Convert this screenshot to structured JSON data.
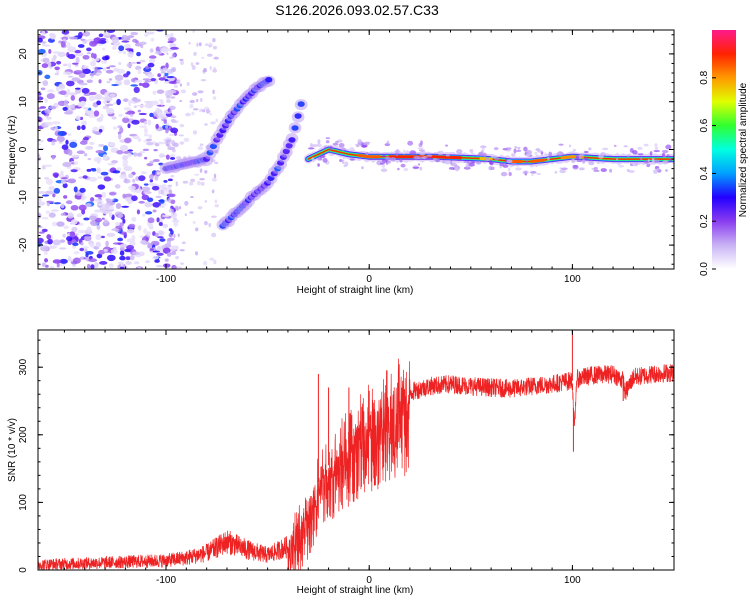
{
  "title": "S126.2026.093.02.57.C33",
  "chart_data": [
    {
      "type": "heatmap",
      "title": "S126.2026.093.02.57.C33",
      "xlabel": "Height of straight line (km)",
      "ylabel": "Frequency (Hz)",
      "xlim": [
        -163,
        150
      ],
      "ylim": [
        -25,
        25
      ],
      "xticks": [
        -100,
        0,
        100
      ],
      "xtick_labels": [
        "-100",
        "0",
        "100"
      ],
      "yticks": [
        -20,
        -10,
        0,
        10,
        20
      ],
      "ytick_labels": [
        "-20",
        "-10",
        "0",
        "10",
        "20"
      ],
      "colorbar": {
        "label": "Normalized spectral amplitude",
        "range": [
          0,
          1
        ],
        "ticks": [
          0.0,
          0.2,
          0.4,
          0.6,
          0.8
        ],
        "tick_labels": [
          "0.0",
          "0.2",
          "0.4",
          "0.6",
          "0.8"
        ],
        "colors": [
          "#ffffff",
          "#c9b3f5",
          "#8a3cf0",
          "#2200ff",
          "#00a0ff",
          "#00ffe0",
          "#30ff30",
          "#e0ff00",
          "#ff9900",
          "#ff2200",
          "#ff1a8c"
        ]
      },
      "features": [
        {
          "name": "noise_region",
          "x_range": [
            -163,
            -95
          ],
          "y_range": [
            -25,
            25
          ],
          "amplitude": 0.15
        },
        {
          "name": "upper_branch",
          "points": [
            [
              -100,
              -4
            ],
            [
              -90,
              -3
            ],
            [
              -80,
              -2
            ],
            [
              -75,
              2
            ],
            [
              -72,
              4
            ],
            [
              -68,
              7
            ],
            [
              -62,
              10
            ],
            [
              -55,
              13
            ],
            [
              -48,
              15
            ]
          ],
          "amplitude": 0.35
        },
        {
          "name": "lower_branch",
          "points": [
            [
              -72,
              -16
            ],
            [
              -65,
              -13
            ],
            [
              -58,
              -10
            ],
            [
              -50,
              -7
            ],
            [
              -45,
              -4
            ],
            [
              -38,
              2
            ],
            [
              -35,
              7
            ],
            [
              -32,
              12
            ]
          ],
          "amplitude": 0.35
        },
        {
          "name": "main_trace",
          "points": [
            [
              -30,
              -2
            ],
            [
              -20,
              0
            ],
            [
              -10,
              -1
            ],
            [
              0,
              -1.5
            ],
            [
              10,
              -1.5
            ],
            [
              30,
              -1.5
            ],
            [
              50,
              -1.8
            ],
            [
              60,
              -2
            ],
            [
              70,
              -2.5
            ],
            [
              80,
              -2.5
            ],
            [
              90,
              -2
            ],
            [
              100,
              -1.5
            ],
            [
              120,
              -2
            ],
            [
              150,
              -2
            ]
          ],
          "amplitude": 0.9
        }
      ]
    },
    {
      "type": "line",
      "xlabel": "Height of straight line (km)",
      "ylabel": "SNR (10 * v/v)",
      "xlim": [
        -163,
        150
      ],
      "ylim": [
        0,
        355
      ],
      "xticks": [
        -100,
        0,
        100
      ],
      "xtick_labels": [
        "-100",
        "0",
        "100"
      ],
      "yticks": [
        0,
        100,
        200,
        300
      ],
      "ytick_labels": [
        "0",
        "100",
        "200",
        "300"
      ],
      "series": [
        {
          "name": "SNR",
          "color": "#ee2222",
          "x": [
            -163,
            -140,
            -120,
            -100,
            -90,
            -80,
            -70,
            -60,
            -50,
            -40,
            -35,
            -30,
            -25,
            -20,
            -15,
            -10,
            -5,
            0,
            5,
            10,
            15,
            20,
            25,
            30,
            40,
            50,
            60,
            70,
            80,
            90,
            95,
            100,
            101,
            102,
            105,
            110,
            120,
            125,
            126,
            130,
            140,
            150
          ],
          "y": [
            8,
            10,
            12,
            14,
            18,
            25,
            42,
            30,
            22,
            35,
            55,
            90,
            130,
            155,
            170,
            185,
            205,
            220,
            230,
            245,
            255,
            262,
            268,
            272,
            275,
            272,
            270,
            268,
            272,
            275,
            278,
            280,
            200,
            282,
            285,
            288,
            290,
            280,
            262,
            285,
            290,
            292
          ],
          "spikes": [
            [
              -25,
              290
            ],
            [
              -20,
              270
            ],
            [
              -10,
              270
            ],
            [
              0,
              265
            ],
            [
              100,
              360
            ],
            [
              100.5,
              175
            ],
            [
              125,
              250
            ]
          ]
        }
      ]
    }
  ]
}
